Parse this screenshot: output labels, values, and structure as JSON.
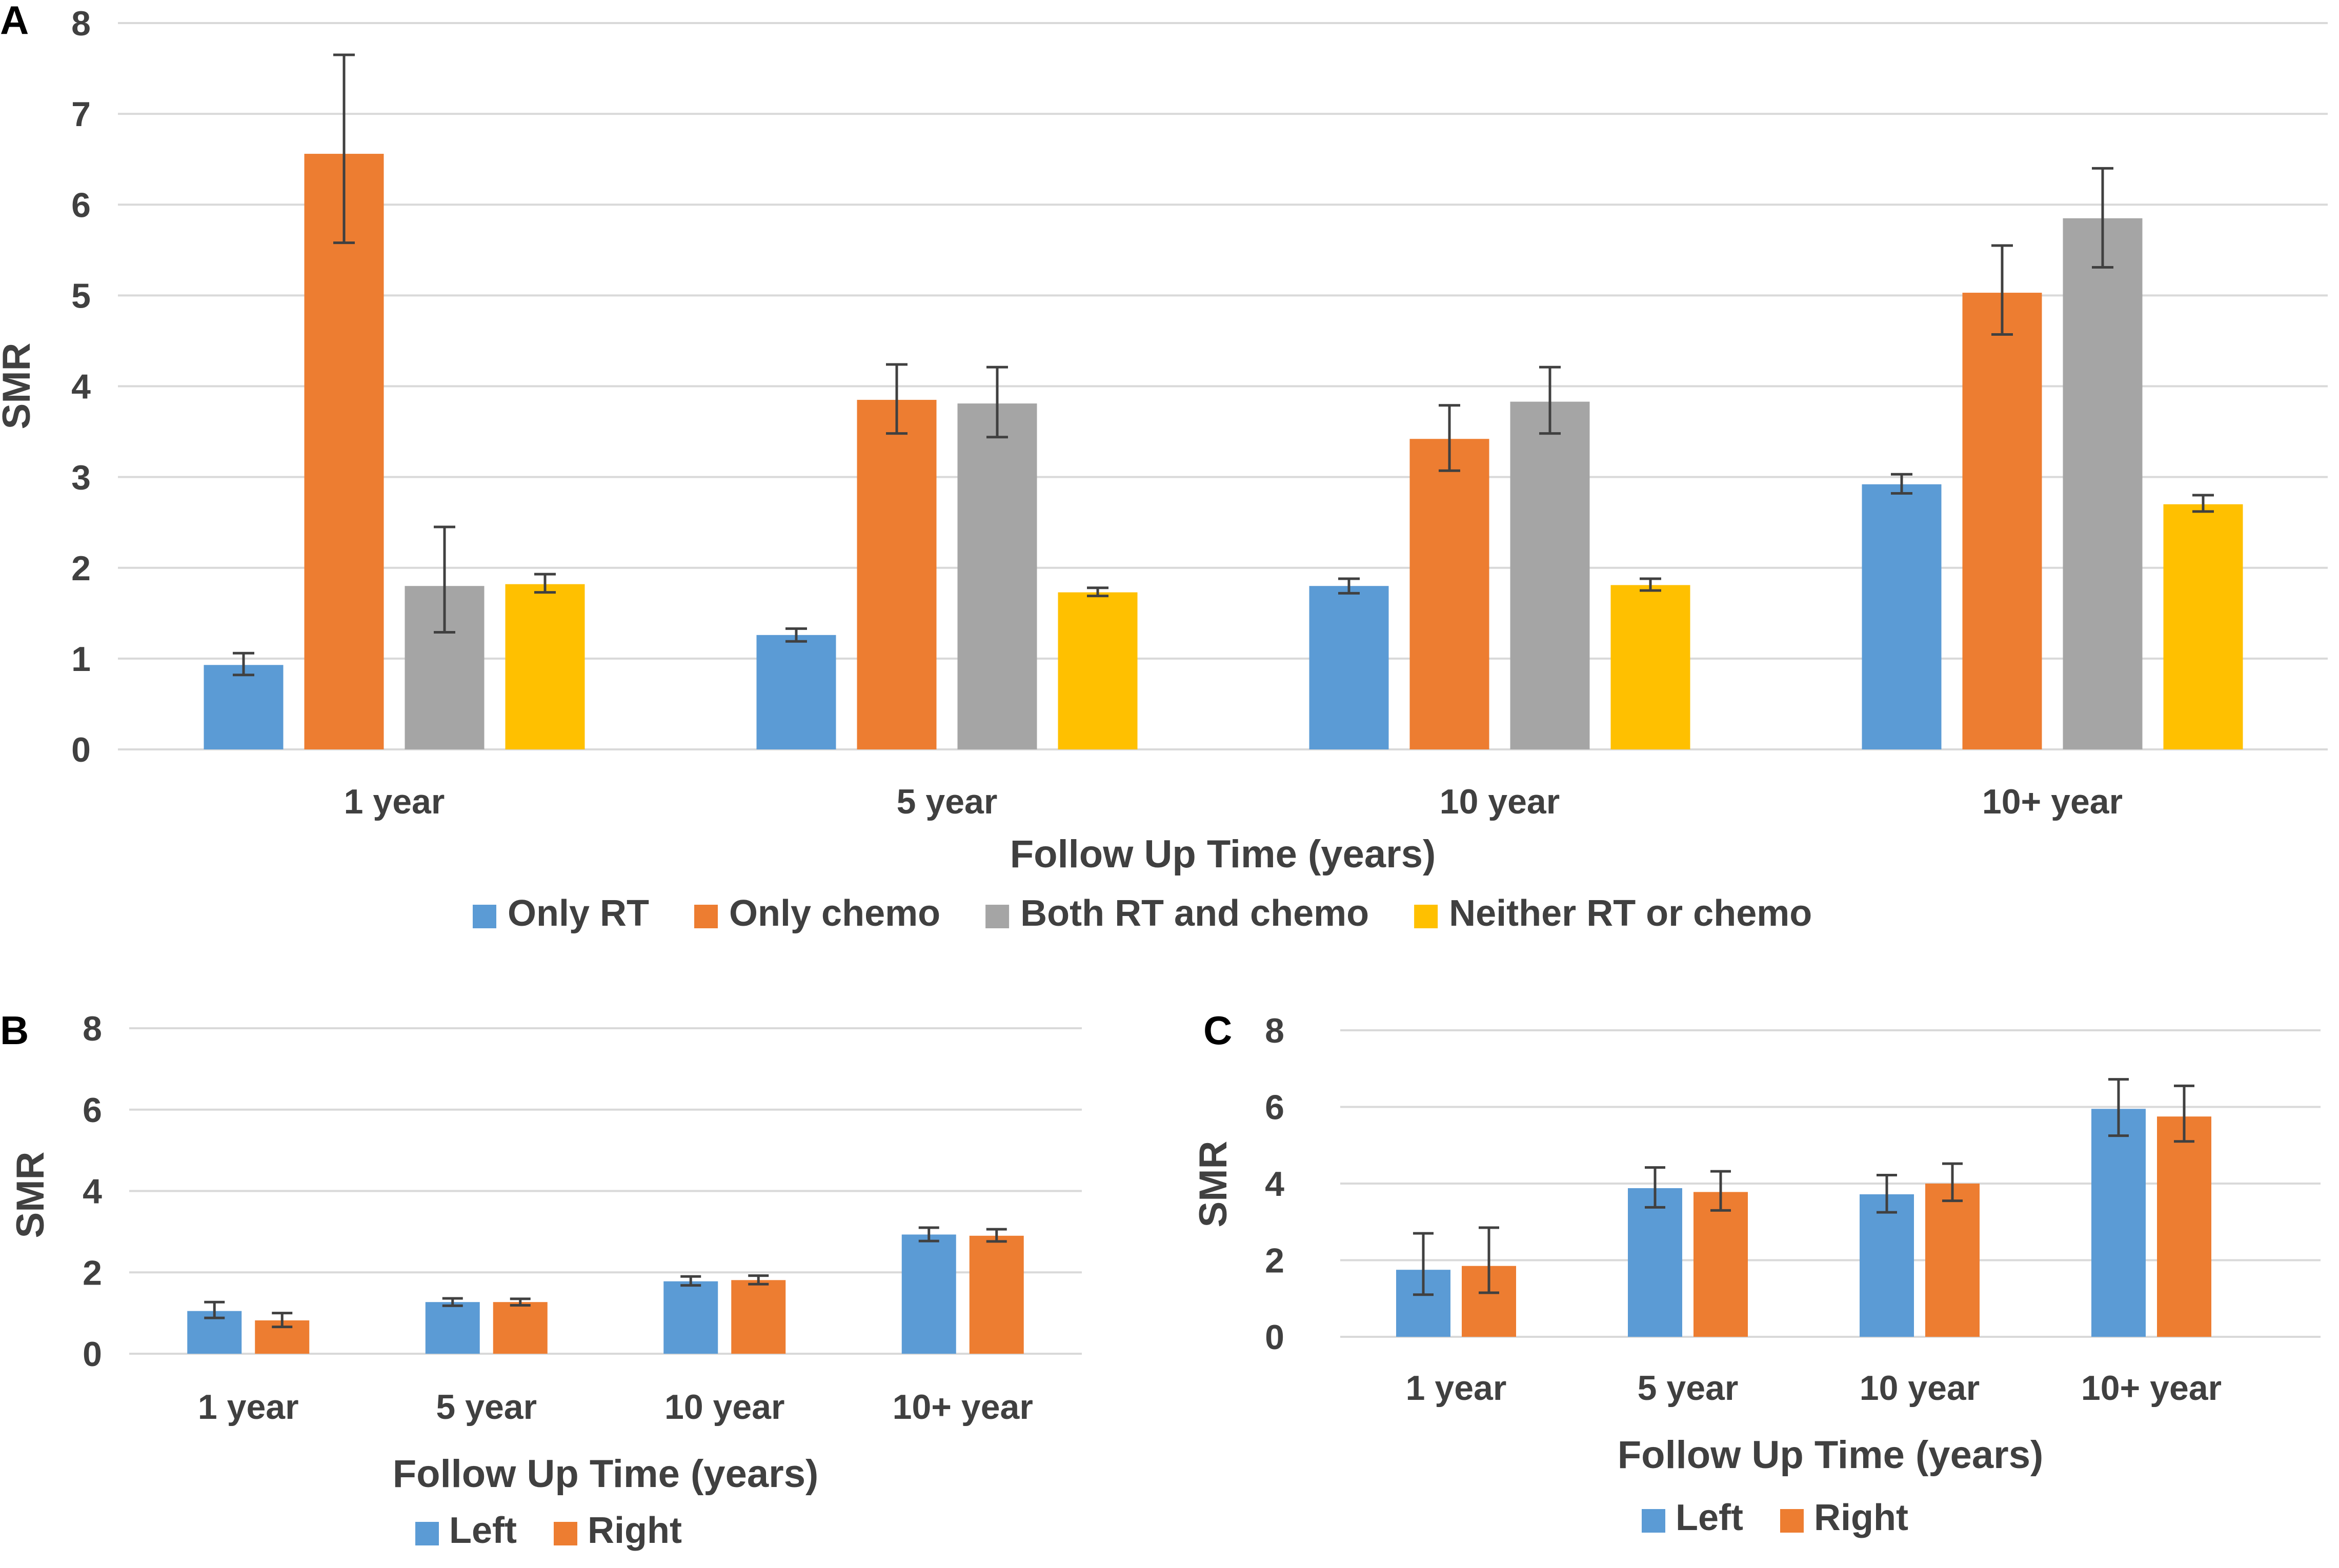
{
  "chart_data": [
    {
      "panel": "A",
      "type": "bar",
      "categories": [
        "1 year",
        "5 year",
        "10 year",
        "10+ year"
      ],
      "series": [
        {
          "name": "Only RT",
          "color": "#5b9bd5",
          "values": [
            0.93,
            1.26,
            1.8,
            2.92
          ],
          "err_low": [
            0.82,
            1.19,
            1.72,
            2.82
          ],
          "err_high": [
            1.06,
            1.33,
            1.88,
            3.03
          ]
        },
        {
          "name": "Only chemo",
          "color": "#ed7d31",
          "values": [
            6.56,
            3.85,
            3.42,
            5.03
          ],
          "err_low": [
            5.58,
            3.48,
            3.07,
            4.57
          ],
          "err_high": [
            7.65,
            4.24,
            3.79,
            5.55
          ]
        },
        {
          "name": "Both RT and chemo",
          "color": "#a5a5a5",
          "values": [
            1.8,
            3.81,
            3.83,
            5.85
          ],
          "err_low": [
            1.29,
            3.44,
            3.48,
            5.31
          ],
          "err_high": [
            2.45,
            4.21,
            4.21,
            6.4
          ]
        },
        {
          "name": "Neither RT or chemo",
          "color": "#ffc000",
          "values": [
            1.82,
            1.73,
            1.81,
            2.7
          ],
          "err_low": [
            1.73,
            1.69,
            1.75,
            2.62
          ],
          "err_high": [
            1.93,
            1.78,
            1.88,
            2.8
          ]
        }
      ],
      "xlabel": "Follow Up Time (years)",
      "ylabel": "SMR",
      "ylim": [
        0,
        8
      ],
      "yticks": [
        "0",
        "1",
        "2",
        "3",
        "4",
        "5",
        "6",
        "7",
        "8"
      ],
      "legend_position": "bottom",
      "grid": true
    },
    {
      "panel": "B",
      "type": "bar",
      "categories": [
        "1 year",
        "5 year",
        "10 year",
        "10+ year"
      ],
      "series": [
        {
          "name": "Left",
          "color": "#5b9bd5",
          "values": [
            1.05,
            1.27,
            1.78,
            2.93
          ],
          "err_low": [
            0.88,
            1.18,
            1.68,
            2.77
          ],
          "err_high": [
            1.27,
            1.36,
            1.9,
            3.1
          ]
        },
        {
          "name": "Right",
          "color": "#ed7d31",
          "values": [
            0.82,
            1.27,
            1.81,
            2.9
          ],
          "err_low": [
            0.66,
            1.19,
            1.71,
            2.76
          ],
          "err_high": [
            1.0,
            1.35,
            1.92,
            3.06
          ]
        }
      ],
      "xlabel": "Follow Up Time (years)",
      "ylabel": "SMR",
      "ylim": [
        0,
        8
      ],
      "yticks": [
        "0",
        "2",
        "4",
        "6",
        "8"
      ],
      "legend_position": "bottom",
      "grid": true
    },
    {
      "panel": "C",
      "type": "bar",
      "categories": [
        "1 year",
        "5 year",
        "10 year",
        "10+ year"
      ],
      "series": [
        {
          "name": "Left",
          "color": "#5b9bd5",
          "values": [
            1.75,
            3.88,
            3.72,
            5.95
          ],
          "err_low": [
            1.1,
            3.38,
            3.25,
            5.25
          ],
          "err_high": [
            2.7,
            4.42,
            4.22,
            6.72
          ]
        },
        {
          "name": "Right",
          "color": "#ed7d31",
          "values": [
            1.85,
            3.78,
            4.0,
            5.75
          ],
          "err_low": [
            1.15,
            3.3,
            3.55,
            5.1
          ],
          "err_high": [
            2.85,
            4.32,
            4.52,
            6.55
          ]
        }
      ],
      "xlabel": "Follow Up Time (years)",
      "ylabel": "SMR",
      "ylim": [
        0,
        8
      ],
      "yticks": [
        "0",
        "2",
        "4",
        "6",
        "8"
      ],
      "legend_position": "bottom",
      "grid": true
    }
  ]
}
